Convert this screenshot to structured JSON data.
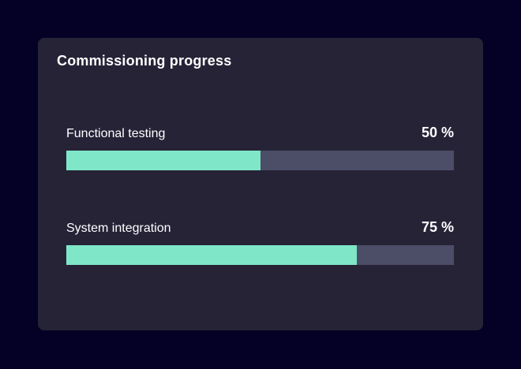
{
  "card": {
    "title": "Commissioning progress"
  },
  "progress_items": [
    {
      "label": "Functional testing",
      "value": "50 %",
      "percent": 50
    },
    {
      "label": "System integration",
      "value": "75 %",
      "percent": 75
    }
  ],
  "chart_data": {
    "type": "bar",
    "title": "Commissioning progress",
    "categories": [
      "Functional testing",
      "System integration"
    ],
    "values": [
      50,
      75
    ],
    "unit": "%",
    "xlim": [
      0,
      100
    ],
    "orientation": "horizontal",
    "legend": "none",
    "grid": false
  },
  "colors": {
    "background": "#050025",
    "card": "#262337",
    "track": "#4C4D66",
    "fill": "#7FE7C8",
    "text": "#FFFFFF"
  }
}
